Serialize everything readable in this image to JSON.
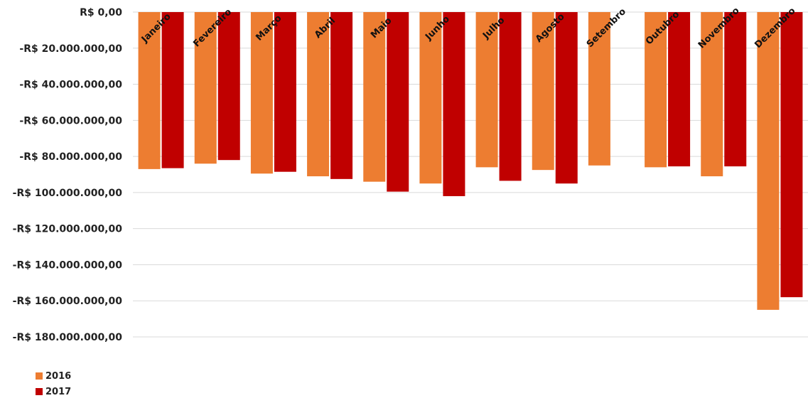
{
  "chart_data": {
    "type": "bar",
    "title": "",
    "xlabel": "",
    "ylabel": "",
    "categories": [
      "Janeiro",
      "Fevereiro",
      "Março",
      "Abril",
      "Maio",
      "Junho",
      "Julho",
      "Agosto",
      "Setembro",
      "Outubro",
      "Novembro",
      "Dezembro"
    ],
    "series": [
      {
        "name": "2016",
        "color": "#ED7D31",
        "values": [
          -87000000,
          -84000000,
          -89500000,
          -91000000,
          -94000000,
          -95000000,
          -86000000,
          -87500000,
          -85000000,
          -86000000,
          -91000000,
          -165000000
        ]
      },
      {
        "name": "2017",
        "color": "#C00000",
        "values": [
          -86500000,
          -82000000,
          -88500000,
          -92500000,
          -99500000,
          -102000000,
          -93500000,
          -95000000,
          null,
          -85500000,
          -85500000,
          -158000000
        ]
      }
    ],
    "ylim": [
      -180000000,
      0
    ],
    "yticks": [
      0,
      -20000000,
      -40000000,
      -60000000,
      -80000000,
      -100000000,
      -120000000,
      -140000000,
      -160000000,
      -180000000
    ],
    "ytick_labels": [
      "R$ 0,00",
      "-R$ 20.000.000,00",
      "-R$ 40.000.000,00",
      "-R$ 60.000.000,00",
      "-R$ 80.000.000,00",
      "-R$ 100.000.000,00",
      "-R$ 120.000.000,00",
      "-R$ 140.000.000,00",
      "-R$ 160.000.000,00",
      "-R$ 180.000.000,00"
    ],
    "grid": true,
    "legend_position": "bottom-left"
  }
}
